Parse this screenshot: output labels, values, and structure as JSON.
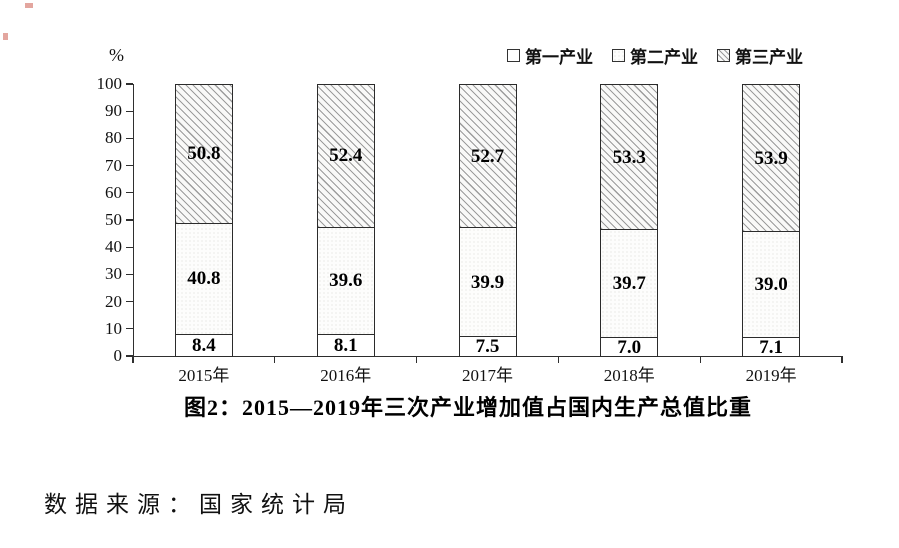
{
  "chart_data": {
    "type": "bar",
    "stacked": true,
    "title": "图2：2015—2019年三次产业增加值占国内生产总值比重",
    "y_axis_unit_label": "%",
    "xlabel": "",
    "ylabel": "%",
    "categories": [
      "2015年",
      "2016年",
      "2017年",
      "2018年",
      "2019年"
    ],
    "series": [
      {
        "name": "第一产业",
        "values": [
          8.4,
          8.1,
          7.5,
          7.0,
          7.1
        ],
        "fill": "plain-white"
      },
      {
        "name": "第二产业",
        "values": [
          40.8,
          39.6,
          39.9,
          39.7,
          39.0
        ],
        "fill": "fine-dots"
      },
      {
        "name": "第三产业",
        "values": [
          50.8,
          52.4,
          52.7,
          53.3,
          53.9
        ],
        "fill": "diagonal-hatch"
      }
    ],
    "ylim": [
      0,
      100
    ],
    "yticks": [
      0,
      10,
      20,
      30,
      40,
      50,
      60,
      70,
      80,
      90,
      100
    ],
    "grid": false,
    "legend_position": "top-right",
    "bar_border_color": "#2b2b2b",
    "hatch_color": "#9c9c9c"
  },
  "legend": {
    "items": [
      {
        "label": "第一产业"
      },
      {
        "label": "第二产业"
      },
      {
        "label": "第三产业"
      }
    ]
  },
  "caption": "图2：2015—2019年三次产业增加值占国内生产总值比重",
  "source_note": "数据来源：国家统计局"
}
